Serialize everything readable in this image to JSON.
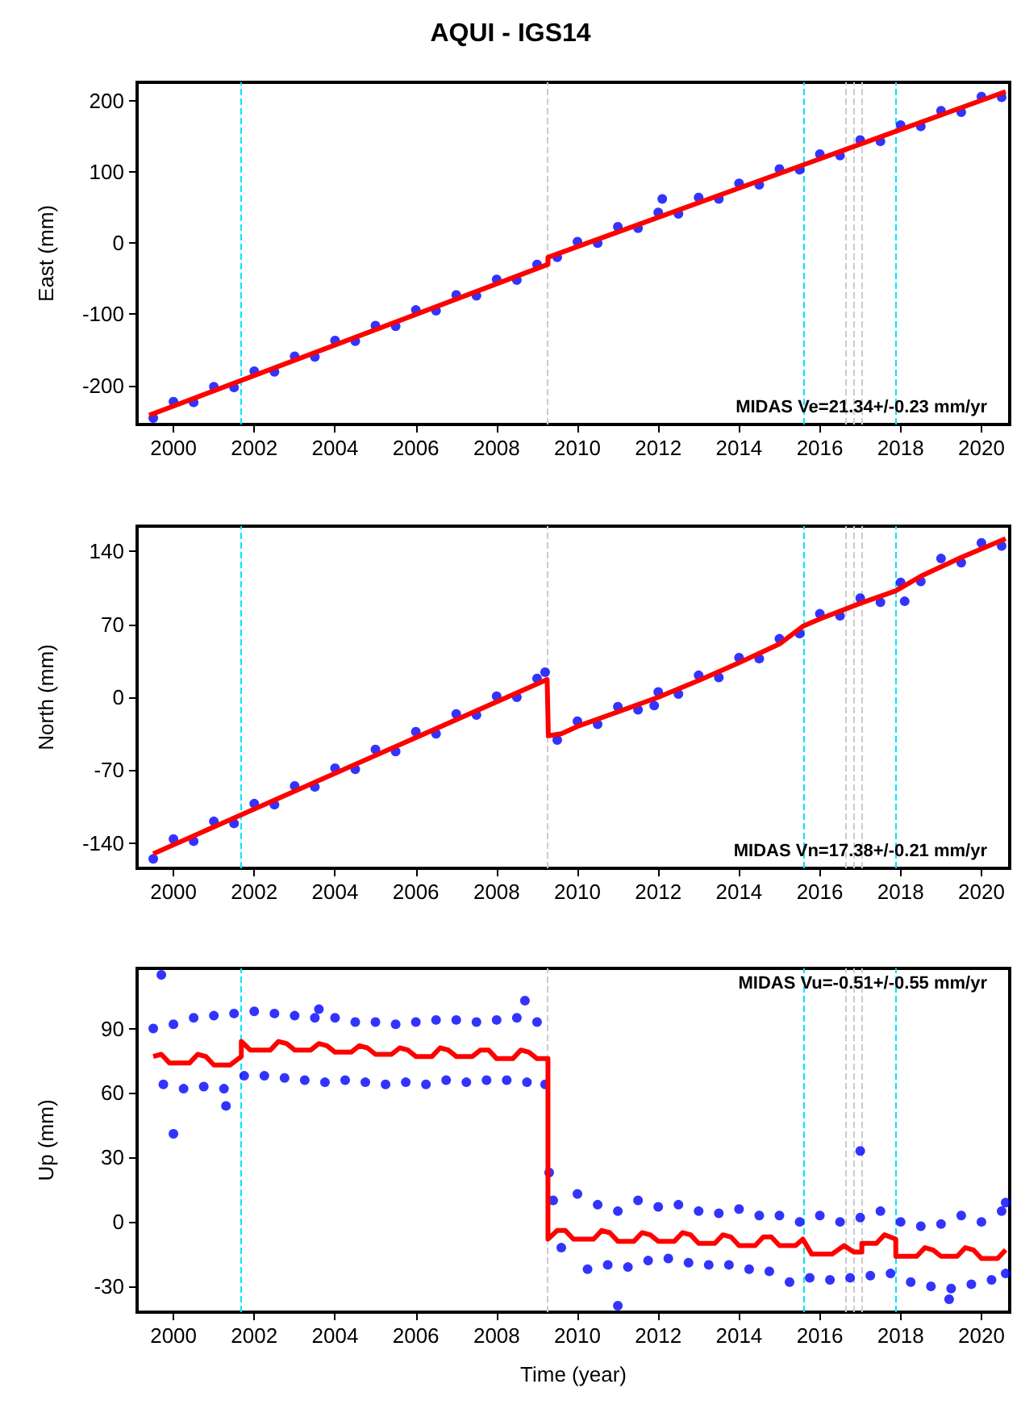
{
  "chart_data": [
    {
      "type": "scatter",
      "title": "AQUI - IGS14",
      "ylabel": "East (mm)",
      "marker": "circle",
      "grid": false,
      "xlim": [
        1999.1,
        2020.7
      ],
      "xticks": [
        2000,
        2002,
        2004,
        2006,
        2008,
        2010,
        2012,
        2014,
        2016,
        2018,
        2020
      ],
      "ylim": [
        -255,
        226
      ],
      "yticks": [
        -200,
        -100,
        0,
        100,
        200
      ],
      "annotations": [
        "MIDAS Ve=21.34+/-0.23 mm/yr"
      ],
      "ref_lines": [
        {
          "axis": "x",
          "value": 2001.68,
          "color": "#00e5ff",
          "line_style": "dashed"
        },
        {
          "axis": "x",
          "value": 2009.27,
          "color": "#cccccc",
          "line_style": "dashed"
        },
        {
          "axis": "x",
          "value": 2015.58,
          "color": "#00e5ff",
          "line_style": "dashed"
        },
        {
          "axis": "x",
          "value": 2016.65,
          "color": "#cccccc",
          "line_style": "dashed"
        },
        {
          "axis": "x",
          "value": 2016.84,
          "color": "#cccccc",
          "line_style": "dashed"
        },
        {
          "axis": "x",
          "value": 2017.04,
          "color": "#cccccc",
          "line_style": "dashed"
        },
        {
          "axis": "x",
          "value": 2017.88,
          "color": "#00e5ff",
          "line_style": "dashed"
        }
      ],
      "series": [
        {
          "color": "#0000ff",
          "x": [
            1999.5,
            2000,
            2000.5,
            2001,
            2001.5,
            2002,
            2002.5,
            2003,
            2003.5,
            2004,
            2004.5,
            2005,
            2005.5,
            2006,
            2006.5,
            2007,
            2007.5,
            2008,
            2008.5,
            2009,
            2009.5,
            2010,
            2010.5,
            2011,
            2011.5,
            2012,
            2012.5,
            2013,
            2013.5,
            2014,
            2014.5,
            2015,
            2015.5,
            2016,
            2016.5,
            2017,
            2017.5,
            2018,
            2018.5,
            2019,
            2019.5,
            2020,
            2020.5,
            2012.1
          ],
          "values": [
            -246,
            -223,
            -224,
            -202,
            -203,
            -180,
            -181,
            -159,
            -160,
            -137,
            -138,
            -116,
            -117,
            -94,
            -95,
            -73,
            -74,
            -51,
            -52,
            -30,
            -20,
            2,
            0,
            23,
            21,
            43,
            41,
            64,
            62,
            84,
            82,
            104,
            103,
            125,
            123,
            145,
            143,
            166,
            164,
            186,
            184,
            206,
            205,
            62
          ]
        },
        {
          "type": "line",
          "color": "#ff0000",
          "marker": "none",
          "x": [
            1999.4,
            2009.27,
            2009.27,
            2020.6
          ],
          "values": [
            -242,
            -30,
            -20,
            213
          ]
        }
      ]
    },
    {
      "type": "scatter",
      "ylabel": "North (mm)",
      "marker": "circle",
      "grid": false,
      "xlim": [
        1999.1,
        2020.7
      ],
      "xticks": [
        2000,
        2002,
        2004,
        2006,
        2008,
        2010,
        2012,
        2014,
        2016,
        2018,
        2020
      ],
      "ylim": [
        -164,
        164
      ],
      "yticks": [
        -140,
        -70,
        0,
        70,
        140
      ],
      "annotations": [
        "MIDAS Vn=17.38+/-0.21 mm/yr"
      ],
      "ref_lines": [
        {
          "axis": "x",
          "value": 2001.68,
          "color": "#00e5ff",
          "line_style": "dashed"
        },
        {
          "axis": "x",
          "value": 2009.27,
          "color": "#cccccc",
          "line_style": "dashed"
        },
        {
          "axis": "x",
          "value": 2015.58,
          "color": "#00e5ff",
          "line_style": "dashed"
        },
        {
          "axis": "x",
          "value": 2016.65,
          "color": "#cccccc",
          "line_style": "dashed"
        },
        {
          "axis": "x",
          "value": 2016.84,
          "color": "#cccccc",
          "line_style": "dashed"
        },
        {
          "axis": "x",
          "value": 2017.04,
          "color": "#cccccc",
          "line_style": "dashed"
        },
        {
          "axis": "x",
          "value": 2017.88,
          "color": "#00e5ff",
          "line_style": "dashed"
        }
      ],
      "series": [
        {
          "color": "#0000ff",
          "x": [
            1999.5,
            2000,
            2000.5,
            2001,
            2001.5,
            2002,
            2002.5,
            2003,
            2003.5,
            2004,
            2004.5,
            2005,
            2005.5,
            2006,
            2006.5,
            2007,
            2007.5,
            2008,
            2008.5,
            2009,
            2009.2,
            2009.5,
            2010,
            2010.5,
            2011,
            2011.5,
            2012,
            2012.5,
            2013,
            2013.5,
            2014,
            2014.5,
            2015,
            2015.5,
            2016,
            2016.5,
            2017,
            2017.5,
            2018,
            2018.5,
            2019,
            2019.5,
            2020,
            2020.5,
            2018.1,
            2011.9
          ],
          "values": [
            -155,
            -136,
            -138,
            -119,
            -121,
            -102,
            -103,
            -85,
            -86,
            -68,
            -69,
            -50,
            -52,
            -33,
            -35,
            -16,
            -17,
            1,
            0,
            18,
            24,
            -41,
            -23,
            -26,
            -9,
            -12,
            5,
            3,
            21,
            19,
            38,
            37,
            56,
            61,
            80,
            78,
            95,
            91,
            110,
            111,
            133,
            129,
            148,
            145,
            92,
            -8
          ]
        },
        {
          "type": "line",
          "color": "#ff0000",
          "marker": "none",
          "x": [
            1999.5,
            2009.25,
            2009.28,
            2009.6,
            2010,
            2011,
            2012,
            2013,
            2014,
            2015,
            2015.58,
            2016,
            2017,
            2017.88,
            2018.5,
            2019.5,
            2020.6
          ],
          "values": [
            -150,
            17,
            -37,
            -35,
            -28,
            -14,
            0,
            16,
            33,
            51,
            68,
            75,
            90,
            102,
            116,
            134,
            152
          ]
        }
      ]
    },
    {
      "type": "scatter",
      "ylabel": "Up (mm)",
      "xlabel": "Time (year)",
      "marker": "circle",
      "grid": false,
      "xlim": [
        1999.1,
        2020.7
      ],
      "xticks": [
        2000,
        2002,
        2004,
        2006,
        2008,
        2010,
        2012,
        2014,
        2016,
        2018,
        2020
      ],
      "ylim": [
        -42,
        118
      ],
      "yticks": [
        -30,
        0,
        30,
        60,
        90
      ],
      "annotations": [
        "MIDAS Vu=-0.51+/-0.55 mm/yr"
      ],
      "ref_lines": [
        {
          "axis": "x",
          "value": 2001.68,
          "color": "#00e5ff",
          "line_style": "dashed"
        },
        {
          "axis": "x",
          "value": 2009.27,
          "color": "#cccccc",
          "line_style": "dashed"
        },
        {
          "axis": "x",
          "value": 2015.58,
          "color": "#00e5ff",
          "line_style": "dashed"
        },
        {
          "axis": "x",
          "value": 2016.65,
          "color": "#cccccc",
          "line_style": "dashed"
        },
        {
          "axis": "x",
          "value": 2016.84,
          "color": "#cccccc",
          "line_style": "dashed"
        },
        {
          "axis": "x",
          "value": 2017.04,
          "color": "#cccccc",
          "line_style": "dashed"
        },
        {
          "axis": "x",
          "value": 2017.88,
          "color": "#00e5ff",
          "line_style": "dashed"
        }
      ],
      "series": [
        {
          "color": "#0000ff",
          "x": [
            1999.5,
            1999.75,
            2000,
            2000.25,
            2000.5,
            2000.75,
            2001,
            2001.25,
            2001.5,
            2001.75,
            2002,
            2002.25,
            2002.5,
            2002.75,
            2003,
            2003.25,
            2003.5,
            2003.75,
            2004,
            2004.25,
            2004.5,
            2004.75,
            2005,
            2005.25,
            2005.5,
            2005.75,
            2006,
            2006.25,
            2006.5,
            2006.75,
            2007,
            2007.25,
            2007.5,
            2007.75,
            2008,
            2008.25,
            2008.5,
            2008.75,
            2009,
            2009.2,
            1999.7,
            2000,
            2001.3,
            2008.7,
            2003.6,
            2009.3,
            2009.4,
            2009.6,
            2010,
            2010.25,
            2010.5,
            2010.75,
            2011,
            2011.25,
            2011.5,
            2011.75,
            2012,
            2012.25,
            2012.5,
            2012.75,
            2013,
            2013.25,
            2013.5,
            2013.75,
            2014,
            2014.25,
            2014.5,
            2014.75,
            2015,
            2015.25,
            2015.5,
            2015.75,
            2016,
            2016.25,
            2016.5,
            2016.75,
            2017,
            2017.25,
            2017.5,
            2017.75,
            2018,
            2018.25,
            2018.5,
            2018.75,
            2019,
            2019.25,
            2019.5,
            2019.75,
            2020,
            2020.25,
            2020.5,
            2020.6,
            2011,
            2019.2,
            2017,
            2020.6
          ],
          "values": [
            90,
            64,
            92,
            62,
            95,
            63,
            96,
            62,
            97,
            68,
            98,
            68,
            97,
            67,
            96,
            66,
            95,
            65,
            95,
            66,
            93,
            65,
            93,
            64,
            92,
            65,
            93,
            64,
            94,
            66,
            94,
            65,
            93,
            66,
            94,
            66,
            95,
            65,
            93,
            64,
            115,
            41,
            54,
            103,
            99,
            23,
            10,
            -12,
            13,
            -22,
            8,
            -20,
            5,
            -21,
            10,
            -18,
            7,
            -17,
            8,
            -19,
            5,
            -20,
            4,
            -20,
            6,
            -22,
            3,
            -23,
            3,
            -28,
            0,
            -26,
            3,
            -27,
            0,
            -26,
            2,
            -25,
            5,
            -24,
            0,
            -28,
            -2,
            -30,
            -1,
            -31,
            3,
            -29,
            0,
            -27,
            5,
            -24,
            -39,
            -36,
            33,
            9
          ]
        },
        {
          "type": "line",
          "color": "#ff0000",
          "marker": "none",
          "x": [
            1999.5,
            1999.7,
            1999.9,
            2000.4,
            2000.6,
            2000.8,
            2001,
            2001.4,
            2001.68,
            2001.68,
            2001.9,
            2002.4,
            2002.6,
            2002.8,
            2003,
            2003.4,
            2003.6,
            2003.8,
            2004,
            2004.4,
            2004.6,
            2004.8,
            2005,
            2005.4,
            2005.6,
            2005.8,
            2006,
            2006.4,
            2006.6,
            2006.8,
            2007,
            2007.4,
            2007.6,
            2007.8,
            2008,
            2008.4,
            2008.6,
            2008.8,
            2009,
            2009.27,
            2009.27,
            2009.5,
            2009.7,
            2009.9,
            2010.4,
            2010.6,
            2010.8,
            2011,
            2011.4,
            2011.6,
            2011.8,
            2012,
            2012.4,
            2012.6,
            2012.8,
            2013,
            2013.4,
            2013.6,
            2013.8,
            2014,
            2014.4,
            2014.6,
            2014.8,
            2015,
            2015.4,
            2015.58,
            2015.8,
            2016.3,
            2016.6,
            2016.84,
            2017.04,
            2017.04,
            2017.4,
            2017.6,
            2017.88,
            2017.88,
            2018.4,
            2018.6,
            2018.8,
            2019,
            2019.4,
            2019.6,
            2019.8,
            2020,
            2020.4,
            2020.6
          ],
          "values": [
            77,
            78,
            74,
            74,
            78,
            77,
            73,
            73,
            77,
            84,
            80,
            80,
            84,
            83,
            80,
            80,
            83,
            82,
            79,
            79,
            82,
            81,
            78,
            78,
            81,
            80,
            77,
            77,
            81,
            80,
            77,
            77,
            80,
            80,
            76,
            76,
            80,
            79,
            76,
            76,
            -8,
            -4,
            -4,
            -8,
            -8,
            -4,
            -5,
            -9,
            -9,
            -5,
            -6,
            -9,
            -9,
            -5,
            -6,
            -10,
            -10,
            -6,
            -7,
            -11,
            -11,
            -7,
            -7,
            -11,
            -11,
            -8,
            -15,
            -15,
            -11,
            -14,
            -14,
            -10,
            -10,
            -6,
            -8,
            -16,
            -16,
            -12,
            -13,
            -16,
            -16,
            -12,
            -13,
            -17,
            -17,
            -13
          ]
        }
      ]
    }
  ]
}
